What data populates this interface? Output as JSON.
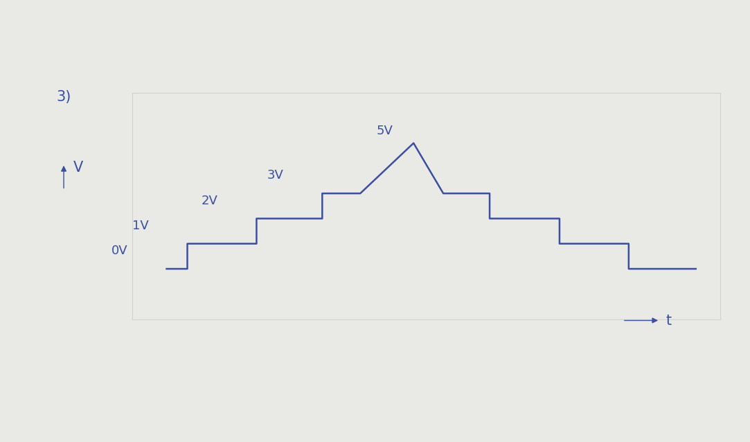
{
  "chart_data": {
    "type": "line",
    "title": "3)",
    "x_label": "t",
    "y_label": "V",
    "x": [
      0,
      0.3,
      0.3,
      1.3,
      1.3,
      2.25,
      2.25,
      2.8,
      3.57,
      4.0,
      4.67,
      4.67,
      5.68,
      5.68,
      6.68,
      6.68,
      7.65
    ],
    "values": [
      0,
      0,
      1,
      1,
      2,
      2,
      3,
      3,
      5,
      3,
      3,
      2,
      2,
      1,
      1,
      0,
      0
    ],
    "annotations": [
      {
        "text": "0V",
        "value": 0
      },
      {
        "text": "1V",
        "value": 1
      },
      {
        "text": "2V",
        "value": 2
      },
      {
        "text": "3V",
        "value": 3
      },
      {
        "text": "5V",
        "value": 5
      }
    ],
    "color": "#3a4fa0",
    "xlim": [
      -0.5,
      8
    ],
    "ylim": [
      -2,
      7
    ],
    "xticks": [],
    "yticks": [],
    "grid": false,
    "tick_labels": false
  }
}
